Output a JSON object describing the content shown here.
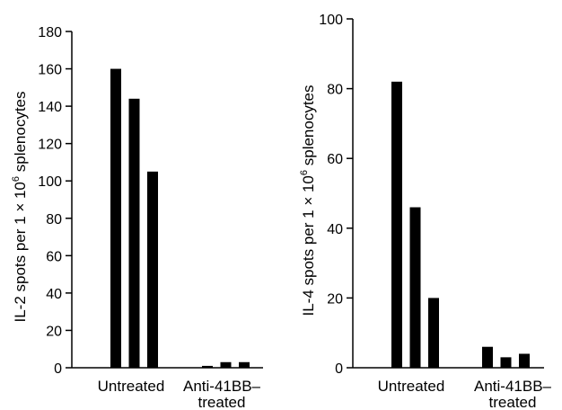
{
  "chart_data": [
    {
      "type": "bar",
      "ylabel_parts": [
        "IL-2 spots per 1 × 10",
        "6",
        " splenocytes"
      ],
      "ylim": [
        0,
        180
      ],
      "yticks": [
        0,
        20,
        40,
        60,
        80,
        100,
        120,
        140,
        160,
        180
      ],
      "categories": [
        [
          "Untreated"
        ],
        [
          "Anti-41BB–",
          "treated"
        ]
      ],
      "groups": [
        [
          160,
          144,
          105
        ],
        [
          1,
          3,
          3
        ]
      ],
      "bar_color": "#000000"
    },
    {
      "type": "bar",
      "ylabel_parts": [
        "IL-4 spots per 1 × 10",
        "6",
        " splenocytes"
      ],
      "ylim": [
        0,
        100
      ],
      "yticks": [
        0,
        20,
        40,
        60,
        80,
        100
      ],
      "categories": [
        [
          "Untreated"
        ],
        [
          "Anti-41BB–",
          "treated"
        ]
      ],
      "groups": [
        [
          82,
          46,
          20
        ],
        [
          6,
          3,
          4
        ]
      ],
      "bar_color": "#000000"
    }
  ]
}
